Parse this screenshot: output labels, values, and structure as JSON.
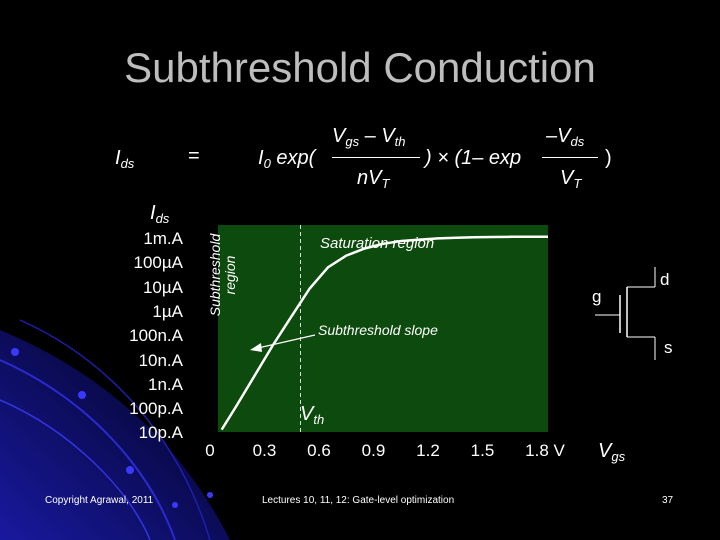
{
  "title": "Subthreshold Conduction",
  "equation": {
    "lhs_main": "I",
    "lhs_sub": "ds",
    "equals": "=",
    "i0_main": "I",
    "i0_sub": "0",
    "exp_open": "exp(",
    "num1_v": "V",
    "num1_sub1": "gs",
    "num1_minus": " – V",
    "num1_sub2": "th",
    "den1": "nV",
    "den1_sub": "T",
    "middle": ") × (1– exp",
    "num2": "–V",
    "num2_sub": "ds",
    "den2": "V",
    "den2_sub": "T",
    "close": ")"
  },
  "chart_data": {
    "type": "line",
    "xlabel": "V",
    "xlabel_sub": "gs",
    "ylabel": "I",
    "ylabel_sub": "ds",
    "x_ticks": [
      "0",
      "0.3",
      "0.6",
      "0.9",
      "1.2",
      "1.5",
      "1.8 V"
    ],
    "x_tick_values": [
      0,
      0.3,
      0.6,
      0.9,
      1.2,
      1.5,
      1.8
    ],
    "y_ticks": [
      "1m.A",
      "100µA",
      "10µA",
      "1µA",
      "100n.A",
      "10n.A",
      "1n.A",
      "100p.A",
      "10p.A"
    ],
    "y_exponents": [
      -3,
      -4,
      -5,
      -6,
      -7,
      -8,
      -9,
      -10,
      -11
    ],
    "xlim": [
      0,
      1.8
    ],
    "ylim_exp": [
      -11.3,
      -2.5
    ],
    "yscale": "log",
    "vth": 0.45,
    "vth_label": "V",
    "vth_label_sub": "th",
    "region_subthreshold": "Subthreshold",
    "region_subthreshold_2": "region",
    "region_saturation": "Saturation region",
    "annotation": "Subthreshold slope",
    "series": [
      {
        "x": [
          0.02,
          0.1,
          0.2,
          0.3,
          0.4,
          0.45,
          0.5,
          0.6,
          0.7,
          0.8,
          0.9,
          1.0,
          1.1,
          1.2,
          1.3,
          1.4,
          1.5,
          1.6,
          1.7,
          1.8
        ],
        "y_exp": [
          -11.2,
          -10.2,
          -8.9,
          -7.6,
          -6.4,
          -5.8,
          -5.2,
          -4.3,
          -3.8,
          -3.5,
          -3.3,
          -3.18,
          -3.12,
          -3.07,
          -3.04,
          -3.02,
          -3.01,
          -3.0,
          -3.0,
          -3.0
        ]
      }
    ]
  },
  "transistor": {
    "gate": "g",
    "drain": "d",
    "source": "s"
  },
  "footer": {
    "left": "Copyright Agrawal, 2011",
    "center": "Lectures 10, 11, 12: Gate-level optimization",
    "page": "37"
  }
}
